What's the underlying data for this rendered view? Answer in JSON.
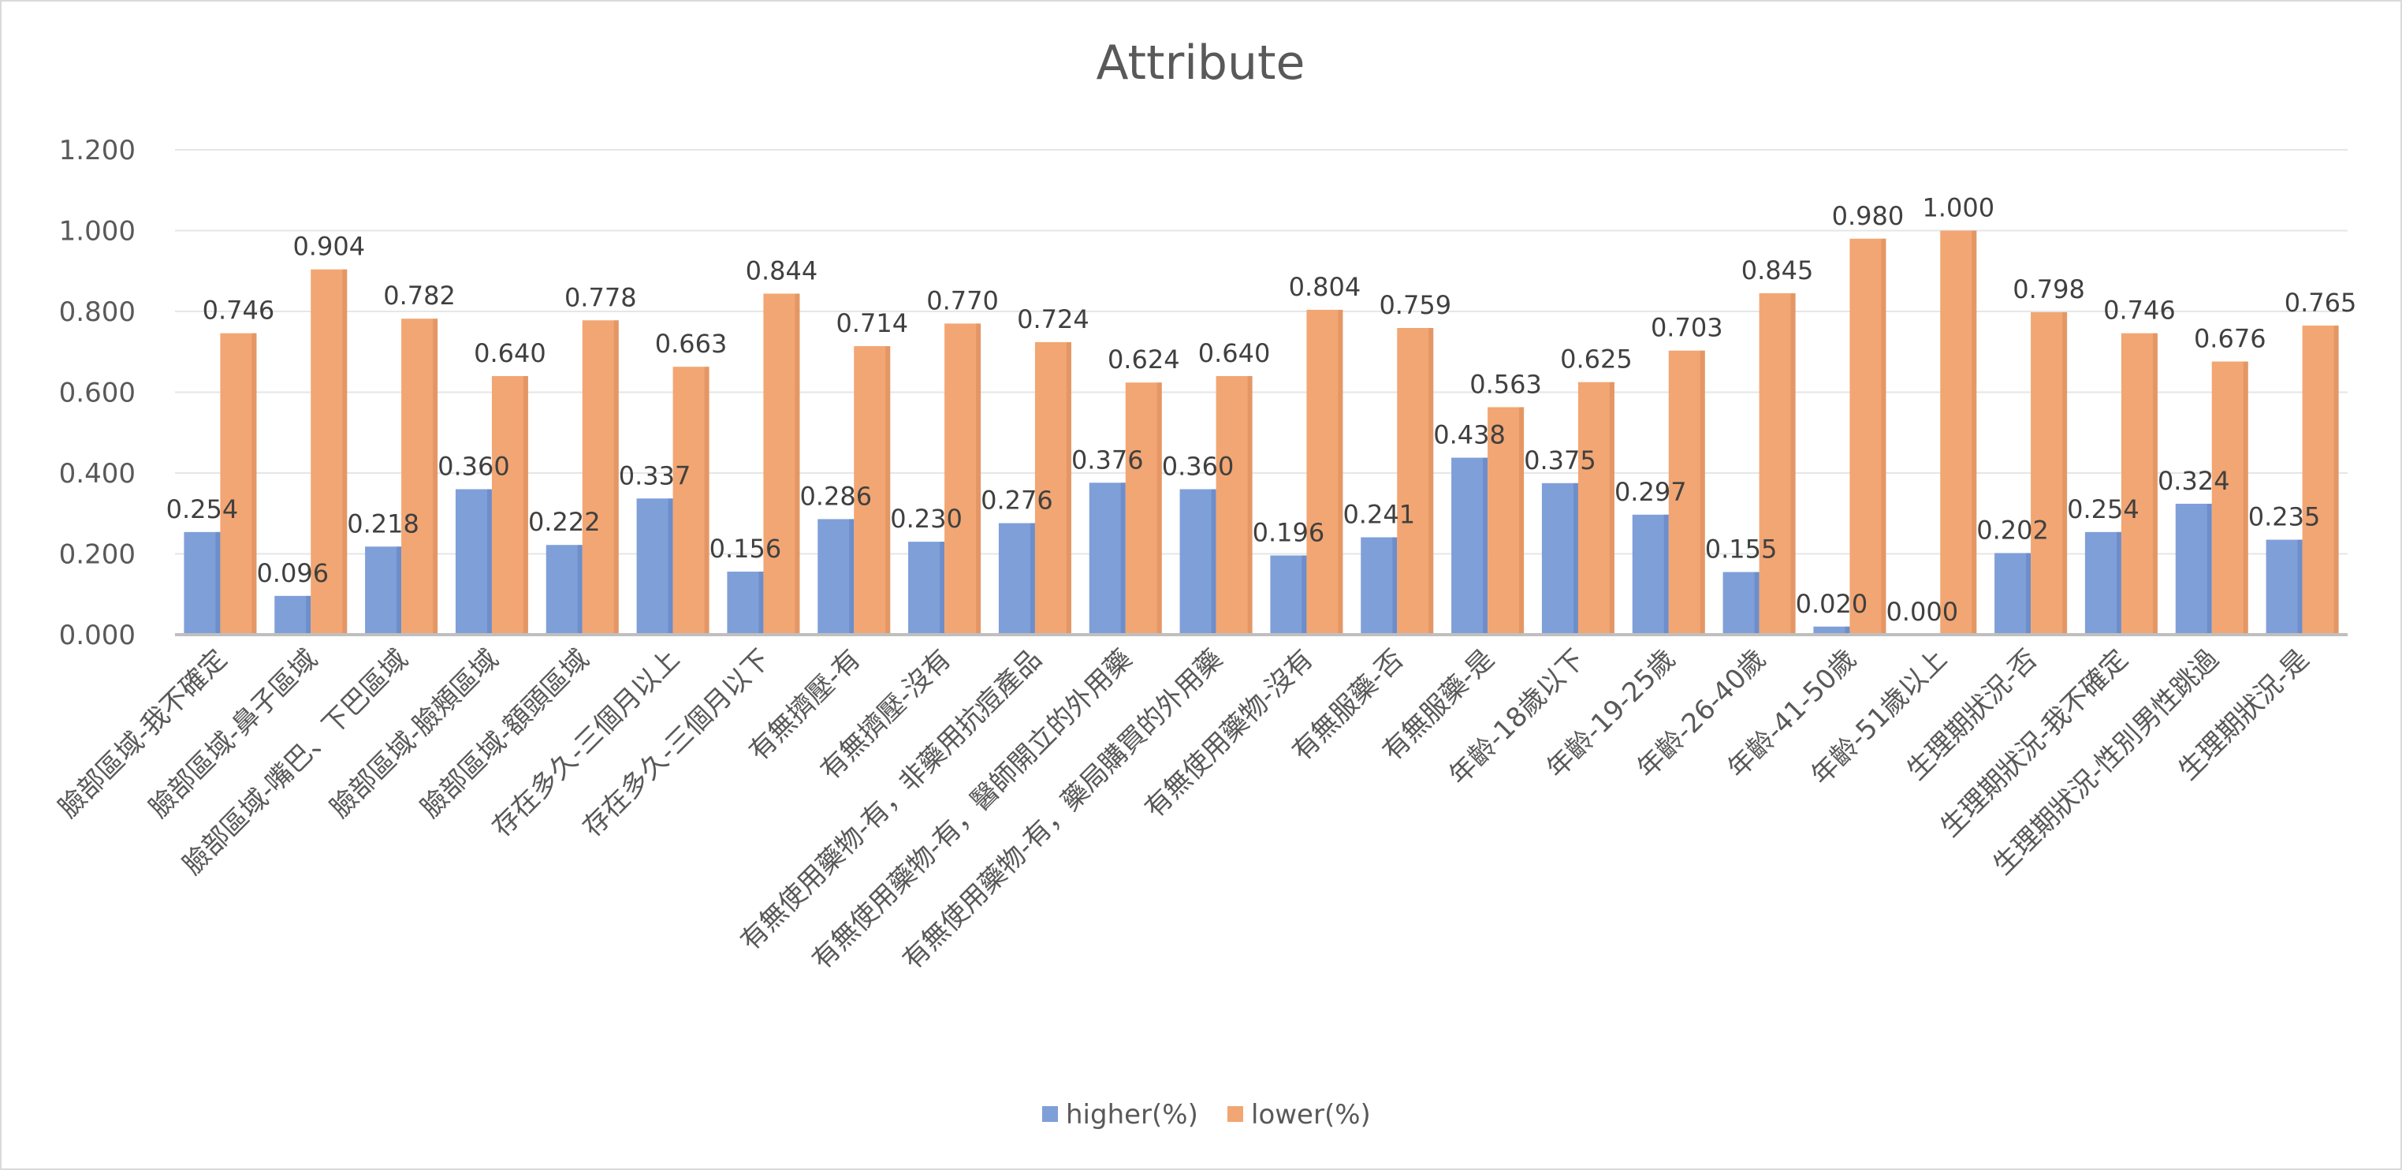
{
  "chart_data": {
    "type": "bar",
    "title": "Attribute",
    "xlabel": "",
    "ylabel": "",
    "ylim": [
      0,
      1.2
    ],
    "yticks": [
      "0.000",
      "0.200",
      "0.400",
      "0.600",
      "0.800",
      "1.000",
      "1.200"
    ],
    "grid": true,
    "legend_position": "bottom",
    "categories": [
      "臉部區域-我不確定",
      "臉部區域-鼻子區域",
      "臉部區域-嘴巴、下巴區域",
      "臉部區域-臉頰區域",
      "臉部區域-額頭區域",
      "存在多久-三個月以上",
      "存在多久-三個月以下",
      "有無擠壓-有",
      "有無擠壓-沒有",
      "有無使用藥物-有，非藥用抗痘產品",
      "有無使用藥物-有，醫師開立的外用藥",
      "有無使用藥物-有，藥局購買的外用藥",
      "有無使用藥物-沒有",
      "有無服藥-否",
      "有無服藥-是",
      "年齡-18歲以下",
      "年齡-19-25歲",
      "年齡-26-40歲",
      "年齡-41-50歲",
      "年齡-51歲以上",
      "生理期狀況-否",
      "生理期狀況-我不確定",
      "生理期狀況-性別男性跳過",
      "生理期狀況-是"
    ],
    "series": [
      {
        "name": "higher(%)",
        "color": "#7f9fd9",
        "values": [
          0.254,
          0.096,
          0.218,
          0.36,
          0.222,
          0.337,
          0.156,
          0.286,
          0.23,
          0.276,
          0.376,
          0.36,
          0.196,
          0.241,
          0.438,
          0.375,
          0.297,
          0.155,
          0.02,
          0.0,
          0.202,
          0.254,
          0.324,
          0.235
        ],
        "labels": [
          "0.254",
          "0.096",
          "0.218",
          "0.360",
          "0.222",
          "0.337",
          "0.156",
          "0.286",
          "0.230",
          "0.276",
          "0.376",
          "0.360",
          "0.196",
          "0.241",
          "0.438",
          "0.375",
          "0.297",
          "0.155",
          "0.020",
          "0.000",
          "0.202",
          "0.254",
          "0.324",
          "0.235"
        ]
      },
      {
        "name": "lower(%)",
        "color": "#f2a673",
        "values": [
          0.746,
          0.904,
          0.782,
          0.64,
          0.778,
          0.663,
          0.844,
          0.714,
          0.77,
          0.724,
          0.624,
          0.64,
          0.804,
          0.759,
          0.563,
          0.625,
          0.703,
          0.845,
          0.98,
          1.0,
          0.798,
          0.746,
          0.676,
          0.765
        ],
        "labels": [
          "0.746",
          "0.904",
          "0.782",
          "0.640",
          "0.778",
          "0.663",
          "0.844",
          "0.714",
          "0.770",
          "0.724",
          "0.624",
          "0.640",
          "0.804",
          "0.759",
          "0.563",
          "0.625",
          "0.703",
          "0.845",
          "0.980",
          "1.000",
          "0.798",
          "0.746",
          "0.676",
          "0.765"
        ]
      }
    ]
  }
}
